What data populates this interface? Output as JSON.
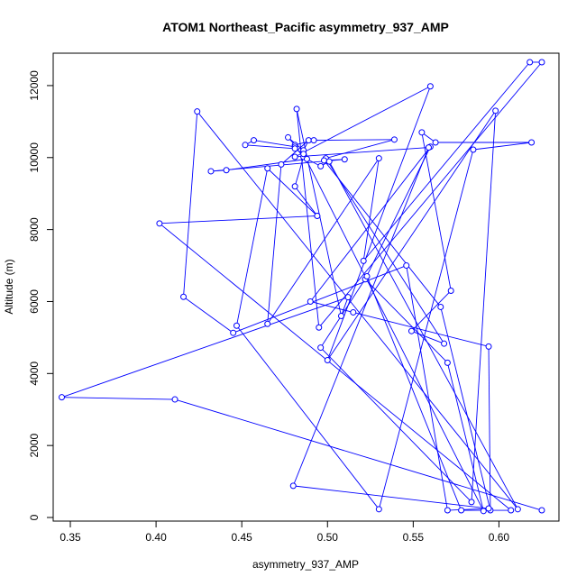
{
  "chart_data": {
    "type": "line",
    "title": "ATOM1 Northeast_Pacific asymmetry_937_AMP",
    "xlabel": "asymmetry_937_AMP",
    "ylabel": "Altitude (m)",
    "xlim": [
      0.34,
      0.635
    ],
    "ylim": [
      -100,
      12900
    ],
    "x_ticks": [
      0.35,
      0.4,
      0.45,
      0.5,
      0.55,
      0.6
    ],
    "x_tick_labels": [
      "0.35",
      "0.40",
      "0.45",
      "0.50",
      "0.55",
      "0.60"
    ],
    "y_ticks": [
      0,
      2000,
      4000,
      6000,
      8000,
      10000,
      12000
    ],
    "y_tick_labels": [
      "0",
      "2000",
      "4000",
      "6000",
      "8000",
      "10000",
      "12000"
    ],
    "series_color": "#0000ff",
    "points": [
      [
        0.625,
        200
      ],
      [
        0.411,
        3280
      ],
      [
        0.345,
        3340
      ],
      [
        0.512,
        6120
      ],
      [
        0.508,
        5600
      ],
      [
        0.482,
        11350
      ],
      [
        0.495,
        5280
      ],
      [
        0.625,
        12650
      ],
      [
        0.618,
        12650
      ],
      [
        0.521,
        7130
      ],
      [
        0.53,
        9980
      ],
      [
        0.465,
        5380
      ],
      [
        0.473,
        9810
      ],
      [
        0.489,
        10480
      ],
      [
        0.486,
        10200
      ],
      [
        0.477,
        10560
      ],
      [
        0.481,
        10350
      ],
      [
        0.492,
        10480
      ],
      [
        0.539,
        10500
      ],
      [
        0.499,
        9980
      ],
      [
        0.568,
        4830
      ],
      [
        0.549,
        5180
      ],
      [
        0.572,
        6300
      ],
      [
        0.555,
        10700
      ],
      [
        0.563,
        10420
      ],
      [
        0.619,
        10420
      ],
      [
        0.585,
        10220
      ],
      [
        0.53,
        230
      ],
      [
        0.447,
        5330
      ],
      [
        0.465,
        9700
      ],
      [
        0.494,
        8380
      ],
      [
        0.481,
        9200
      ],
      [
        0.486,
        10020
      ],
      [
        0.481,
        10300
      ],
      [
        0.457,
        10480
      ],
      [
        0.452,
        10350
      ],
      [
        0.481,
        10250
      ],
      [
        0.486,
        10100
      ],
      [
        0.591,
        180
      ],
      [
        0.57,
        4300
      ],
      [
        0.522,
        6620
      ],
      [
        0.56,
        10300
      ],
      [
        0.49,
        6000
      ],
      [
        0.515,
        5700
      ],
      [
        0.594,
        4750
      ],
      [
        0.595,
        200
      ],
      [
        0.566,
        5850
      ],
      [
        0.498,
        9920
      ],
      [
        0.51,
        9950
      ],
      [
        0.432,
        9620
      ],
      [
        0.441,
        9650
      ],
      [
        0.488,
        9960
      ],
      [
        0.496,
        9760
      ],
      [
        0.501,
        9890
      ],
      [
        0.611,
        230
      ],
      [
        0.424,
        11280
      ],
      [
        0.416,
        6130
      ],
      [
        0.445,
        5130
      ],
      [
        0.546,
        7000
      ],
      [
        0.57,
        200
      ],
      [
        0.594,
        250
      ],
      [
        0.48,
        880
      ],
      [
        0.559,
        10280
      ],
      [
        0.481,
        10020
      ],
      [
        0.56,
        11980
      ],
      [
        0.5,
        4370
      ],
      [
        0.598,
        11300
      ],
      [
        0.584,
        430
      ],
      [
        0.496,
        4720
      ],
      [
        0.523,
        6700
      ],
      [
        0.578,
        200
      ],
      [
        0.607,
        200
      ],
      [
        0.402,
        8170
      ],
      [
        0.494,
        8380
      ]
    ]
  }
}
